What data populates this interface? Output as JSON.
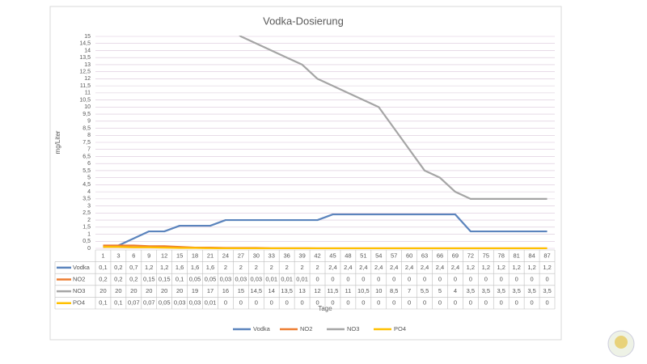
{
  "chart_data": {
    "type": "line",
    "title": "Vodka-Dosierung",
    "y_label": "mg/Liter",
    "x_label": "Tage",
    "categories": [
      "1",
      "3",
      "6",
      "9",
      "12",
      "15",
      "18",
      "21",
      "24",
      "27",
      "30",
      "33",
      "36",
      "39",
      "42",
      "45",
      "48",
      "51",
      "54",
      "57",
      "60",
      "63",
      "66",
      "69",
      "72",
      "75",
      "78",
      "81",
      "84",
      "87"
    ],
    "series": [
      {
        "name": "Vodka",
        "color": "#5b84bd",
        "values": [
          0.1,
          0.2,
          0.7,
          1.2,
          1.2,
          1.6,
          1.6,
          1.6,
          2,
          2,
          2,
          2,
          2,
          2,
          2,
          2.4,
          2.4,
          2.4,
          2.4,
          2.4,
          2.4,
          2.4,
          2.4,
          2.4,
          1.2,
          1.2,
          1.2,
          1.2,
          1.2,
          1.2
        ],
        "value_labels": [
          "0,1",
          "0,2",
          "0,7",
          "1,2",
          "1,2",
          "1,6",
          "1,6",
          "1,6",
          "2",
          "2",
          "2",
          "2",
          "2",
          "2",
          "2",
          "2,4",
          "2,4",
          "2,4",
          "2,4",
          "2,4",
          "2,4",
          "2,4",
          "2,4",
          "2,4",
          "1,2",
          "1,2",
          "1,2",
          "1,2",
          "1,2",
          "1,2"
        ]
      },
      {
        "name": "NO2",
        "color": "#ed7d31",
        "values": [
          0.2,
          0.2,
          0.2,
          0.15,
          0.15,
          0.1,
          0.05,
          0.05,
          0.03,
          0.03,
          0.03,
          0.01,
          0.01,
          0.01,
          0,
          0,
          0,
          0,
          0,
          0,
          0,
          0,
          0,
          0,
          0,
          0,
          0,
          0,
          0,
          0
        ],
        "value_labels": [
          "0,2",
          "0,2",
          "0,2",
          "0,15",
          "0,15",
          "0,1",
          "0,05",
          "0,05",
          "0,03",
          "0,03",
          "0,03",
          "0,01",
          "0,01",
          "0,01",
          "0",
          "0",
          "0",
          "0",
          "0",
          "0",
          "0",
          "0",
          "0",
          "0",
          "0",
          "0",
          "0",
          "0",
          "0",
          "0"
        ]
      },
      {
        "name": "NO3",
        "color": "#a5a5a5",
        "values": [
          20,
          20,
          20,
          20,
          20,
          20,
          19,
          17,
          16,
          15,
          14.5,
          14,
          13.5,
          13,
          12,
          11.5,
          11,
          10.5,
          10,
          8.5,
          7,
          5.5,
          5,
          4,
          3.5,
          3.5,
          3.5,
          3.5,
          3.5,
          3.5
        ],
        "value_labels": [
          "20",
          "20",
          "20",
          "20",
          "20",
          "20",
          "19",
          "17",
          "16",
          "15",
          "14,5",
          "14",
          "13,5",
          "13",
          "12",
          "11,5",
          "11",
          "10,5",
          "10",
          "8,5",
          "7",
          "5,5",
          "5",
          "4",
          "3,5",
          "3,5",
          "3,5",
          "3,5",
          "3,5",
          "3,5"
        ]
      },
      {
        "name": "PO4",
        "color": "#ffc000",
        "values": [
          0.1,
          0.1,
          0.07,
          0.07,
          0.05,
          0.03,
          0.03,
          0.01,
          0,
          0,
          0,
          0,
          0,
          0,
          0,
          0,
          0,
          0,
          0,
          0,
          0,
          0,
          0,
          0,
          0,
          0,
          0,
          0,
          0,
          0
        ],
        "value_labels": [
          "0,1",
          "0,1",
          "0,07",
          "0,07",
          "0,05",
          "0,03",
          "0,03",
          "0,01",
          "0",
          "0",
          "0",
          "0",
          "0",
          "0",
          "0",
          "0",
          "0",
          "0",
          "0",
          "0",
          "0",
          "0",
          "0",
          "0",
          "0",
          "0",
          "0",
          "0",
          "0",
          "0"
        ]
      }
    ],
    "ylim": [
      0,
      15
    ],
    "yticks": [
      0,
      {
        "value": 0.5,
        "label": "0,5"
      },
      1,
      {
        "value": 1.5,
        "label": "1,5"
      },
      2,
      {
        "value": 2.5,
        "label": "2,5"
      },
      3,
      {
        "value": 3.5,
        "label": "3,5"
      },
      4,
      {
        "value": 4.5,
        "label": "4,5"
      },
      5,
      {
        "value": 5.5,
        "label": "5,5"
      },
      6,
      {
        "value": 6.5,
        "label": "6,5"
      },
      7,
      {
        "value": 7.5,
        "label": "7,5"
      },
      8,
      {
        "value": 8.5,
        "label": "8,5"
      },
      9,
      {
        "value": 9.5,
        "label": "9,5"
      },
      10,
      {
        "value": 10.5,
        "label": "10,5"
      },
      11,
      {
        "value": 11.5,
        "label": "11,5"
      },
      12,
      {
        "value": 12.5,
        "label": "12,5"
      },
      13,
      {
        "value": 13.5,
        "label": "13,5"
      },
      14,
      {
        "value": 14.5,
        "label": "14,5"
      },
      15
    ],
    "grid": true,
    "legend": "bottom"
  }
}
